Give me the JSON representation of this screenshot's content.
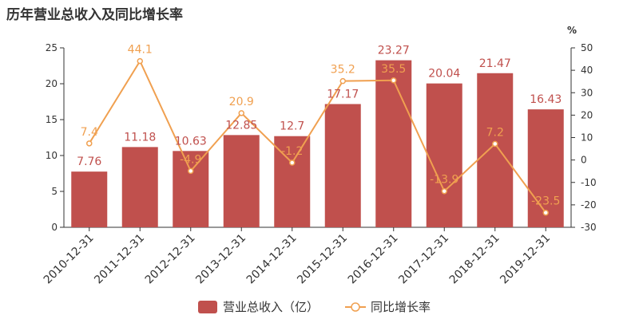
{
  "chart_data": {
    "type": "bar",
    "title": "历年营业总收入及同比增长率",
    "categories": [
      "2010-12-31",
      "2011-12-31",
      "2012-12-31",
      "2013-12-31",
      "2014-12-31",
      "2015-12-31",
      "2016-12-31",
      "2017-12-31",
      "2018-12-31",
      "2019-12-31"
    ],
    "series": [
      {
        "name": "营业总收入（亿）",
        "type": "bar",
        "axis": "left",
        "color": "#c0504d",
        "values": [
          7.76,
          11.18,
          10.63,
          12.85,
          12.7,
          17.17,
          23.27,
          20.04,
          21.47,
          16.43
        ],
        "labels": [
          "7.76",
          "11.18",
          "10.63",
          "12.85",
          "12.7",
          "17.17",
          "23.27",
          "20.04",
          "21.47",
          "16.43"
        ]
      },
      {
        "name": "同比增长率",
        "type": "line",
        "axis": "right",
        "color": "#f0a050",
        "values": [
          7.4,
          44.1,
          -4.9,
          20.9,
          -1.2,
          35.2,
          35.5,
          -13.9,
          7.2,
          -23.5
        ],
        "labels": [
          "7.4",
          "44.1",
          "-4.9",
          "20.9",
          "-1.2",
          "35.2",
          "35.5",
          "-13.9",
          "7.2",
          "-23.5"
        ]
      }
    ],
    "y_left": {
      "min": 0,
      "max": 25,
      "ticks": [
        "0",
        "5",
        "10",
        "15",
        "20",
        "25"
      ]
    },
    "y_right": {
      "min": -30,
      "max": 50,
      "unit": "%",
      "ticks": [
        "-30",
        "-20",
        "-10",
        "0",
        "10",
        "20",
        "30",
        "40",
        "50"
      ]
    },
    "grid": false,
    "legend_position": "bottom"
  }
}
